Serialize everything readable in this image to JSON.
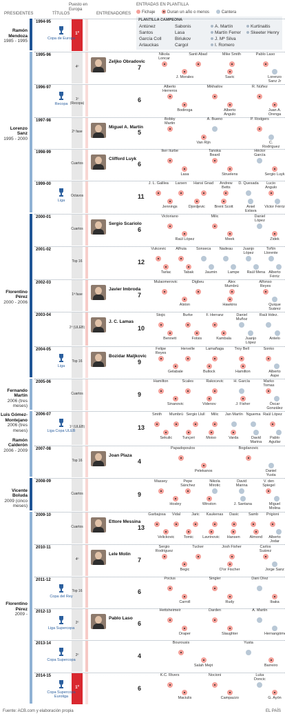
{
  "headers": {
    "presidents": "PRESIDENTES",
    "titles": "Títulos",
    "europe": "Puesto en Europa",
    "coaches": "ENTRENADORES",
    "entries": "ENTRADAS EN PLANTILLA"
  },
  "legend": {
    "signing": "Fichaje",
    "short": "Duran un año o menos",
    "youth": "Cantera"
  },
  "champ": {
    "title": "PLANTILLA CAMPEONA",
    "names": [
      "Antúnez",
      "Sabonis",
      "A. Martín",
      "Kurtinaitis",
      "Santos",
      "Lasa",
      "Martín Ferrer",
      "Skeeter Henry",
      "García Coll",
      "Biriukov",
      "J. Mª Silva",
      "",
      "Arlauckas",
      "Cargol",
      "I. Romero",
      ""
    ]
  },
  "presidents": [
    {
      "name": "Ramón Mendoza",
      "years": "1985 - 1995",
      "color": "#1f5596"
    },
    {
      "name": "Lorenzo Sanz",
      "years": "1995 - 2000",
      "color": "#8fb1d4"
    },
    {
      "name": "Florentino Pérez",
      "years": "2000 - 2006",
      "color": "#1f5596"
    },
    {
      "name": "Fernando Martín",
      "years": "2006 (tres meses)",
      "color": "#8fb1d4"
    },
    {
      "name": "Luis Gómez-Montejano",
      "years": "2006 (tres meses)",
      "color": "#1f5596"
    },
    {
      "name": "Ramón Calderón",
      "years": "2006 - 2009",
      "color": "#8fb1d4"
    },
    {
      "name": "Vicente Boluda",
      "years": "2009 (cinco meses)",
      "color": "#1f5596"
    },
    {
      "name": "Florentino Pérez",
      "years": "2009 -",
      "color": "#8fb1d4"
    }
  ],
  "seasons": [
    {
      "season": "1994-95",
      "title": "Copa de Europa",
      "europe": "1º",
      "win": true,
      "coach": "",
      "count": "",
      "players": []
    },
    {
      "season": "1995-96",
      "title": "",
      "europe": "4º",
      "win": false,
      "coach": "Zeljko Obradovic",
      "count": "7",
      "players": [
        [
          "Nikola Loncar",
          "f"
        ],
        [
          "Santi Abad",
          "f"
        ],
        [
          "Mike Smith",
          "f"
        ],
        [
          "Pablo Laso",
          "f"
        ],
        [
          "J. Morales",
          "f"
        ],
        [
          "Savic",
          "f"
        ],
        [
          "Lorenzo Sanz Jr",
          "c"
        ]
      ]
    },
    {
      "season": "1996-97",
      "title": "Recopa",
      "europe": "1º (Recopa)",
      "win": false,
      "coach": "",
      "count": "6",
      "players": [
        [
          "Alberto Herreros",
          "f"
        ],
        [
          "Mikhailov",
          "f"
        ],
        [
          "R. Núñez",
          "f"
        ],
        [
          "Bodiroga",
          "f"
        ],
        [
          "Alberto Angulo",
          "f"
        ],
        [
          "Juan A. Orenga",
          "f"
        ]
      ]
    },
    {
      "season": "1997-98",
      "title": "",
      "europe": "2º fase",
      "win": false,
      "coach": "Miguel A. Martín",
      "count": "5",
      "players": [
        [
          "Bobby Martin",
          "f"
        ],
        [
          "A. Bueno",
          "c"
        ],
        [
          "P. Rodgers",
          "f"
        ],
        [
          "Van Rijn",
          "f"
        ],
        [
          "C. Rodríguez",
          "c"
        ]
      ]
    },
    {
      "season": "1998-99",
      "title": "",
      "europe": "Cuartos",
      "win": false,
      "coach": "Clifford Luyk",
      "count": "6",
      "players": [
        [
          "Iker Iturbe",
          "f"
        ],
        [
          "Tanoka Beard",
          "f"
        ],
        [
          "Héctor García",
          "c"
        ],
        [
          "Lasa",
          "f"
        ],
        [
          "Struelens",
          "f"
        ],
        [
          "Sergio Luyk",
          "f"
        ]
      ]
    },
    {
      "season": "1999-00",
      "title": "Liga",
      "europe": "Octavos",
      "win": false,
      "coach": "",
      "count": "11",
      "players": [
        [
          "J. L. Galilea",
          "f"
        ],
        [
          "Larsen",
          "f"
        ],
        [
          "Hansi Gnad",
          "f"
        ],
        [
          "Andrew Betts",
          "f"
        ],
        [
          "D. Quesada",
          "c"
        ],
        [
          "Lucio Angulo",
          "f"
        ],
        [
          "Jennings",
          "f"
        ],
        [
          "Djordjevic",
          "f"
        ],
        [
          "Brent Scott",
          "f"
        ],
        [
          "Aniel Eslava",
          "c"
        ],
        [
          "Victor Férriz",
          "c"
        ]
      ]
    },
    {
      "season": "2000-01",
      "title": "",
      "europe": "Cuartos",
      "win": false,
      "coach": "Sergio Scariolo",
      "count": "6",
      "players": [
        [
          "Victoriano",
          "f"
        ],
        [
          "Milic",
          "f"
        ],
        [
          "Daniel López",
          "c"
        ],
        [
          "Raúl López",
          "f"
        ],
        [
          "Meek",
          "f"
        ],
        [
          "Zidek",
          "f"
        ]
      ]
    },
    {
      "season": "2001-02",
      "title": "",
      "europe": "Top 16",
      "win": false,
      "coach": "",
      "count": "12",
      "players": [
        [
          "Vukcevic",
          "f"
        ],
        [
          "Alfruia",
          "f"
        ],
        [
          "Sonseca",
          "c"
        ],
        [
          "Nadeau",
          "c"
        ],
        [
          "Juanjo López",
          "c"
        ],
        [
          "Toñín Llorente",
          "c"
        ],
        [
          "Tarlac",
          "f"
        ],
        [
          "Tabak",
          "f"
        ],
        [
          "Jaumin",
          "c"
        ],
        [
          "Lampe",
          "c"
        ],
        [
          "Raúl Mena",
          "c"
        ],
        [
          "Alberto Férriz",
          "c"
        ]
      ]
    },
    {
      "season": "2002-03",
      "title": "",
      "europe": "1ª fase",
      "win": false,
      "coach": "Javier Imbroda",
      "count": "7",
      "players": [
        [
          "Mulaomerovic",
          "f"
        ],
        [
          "Digbeu",
          "f"
        ],
        [
          "Álex Mumbrú",
          "f"
        ],
        [
          "Alfonso Reyes",
          "f"
        ],
        [
          "Alston",
          "f"
        ],
        [
          "Hawkins",
          "f"
        ],
        [
          "Quique Suárez",
          "c"
        ]
      ]
    },
    {
      "season": "2003-04",
      "title": "",
      "europe": "2º (ULEB)",
      "win": false,
      "coach": "J. C. Lamas",
      "count": "10",
      "players": [
        [
          "Stojic",
          "f"
        ],
        [
          "Burke",
          "f"
        ],
        [
          "F. Herranz",
          "f"
        ],
        [
          "Daniel Muñoz",
          "c"
        ],
        [
          "Raúl Hdez.",
          "c"
        ],
        [
          "Bennett",
          "f"
        ],
        [
          "Fotsis",
          "f"
        ],
        [
          "Kambala",
          "f"
        ],
        [
          "Juanjo López",
          "c"
        ],
        [
          "Antelo",
          "c"
        ]
      ]
    },
    {
      "season": "2004-05",
      "title": "Liga",
      "europe": "Top 16",
      "win": false,
      "coach": "Bozidar Maljkovic",
      "count": "9",
      "players": [
        [
          "Felipe Reyes",
          "f"
        ],
        [
          "Hervelle",
          "f"
        ],
        [
          "Lamañaga",
          "f"
        ],
        [
          "Troy Bell",
          "f"
        ],
        [
          "Sonko",
          "f"
        ],
        [
          "Gelabale",
          "f"
        ],
        [
          "Bullock",
          "f"
        ],
        [
          "Hamilton",
          "f"
        ],
        [
          "Alberto Aspe",
          "c"
        ]
      ]
    },
    {
      "season": "2005-06",
      "title": "",
      "europe": "Cuartos",
      "win": false,
      "coach": "",
      "count": "9",
      "players": [
        [
          "Hamilton",
          "f"
        ],
        [
          "Scales",
          "f"
        ],
        [
          "Rakocevic",
          "f"
        ],
        [
          "H. García",
          "c"
        ],
        [
          "Marko Tomas",
          "f"
        ],
        [
          "Sinanovic",
          "f"
        ],
        [
          "Videnov",
          "f"
        ],
        [
          "J. Fisher",
          "f"
        ],
        [
          "Óscar González",
          "c"
        ]
      ]
    },
    {
      "season": "2006-07",
      "title": "Liga Copa ULEB",
      "europe": "1º (ULEB)",
      "win": false,
      "coach": "",
      "count": "13",
      "players": [
        [
          "Smith",
          "f"
        ],
        [
          "Mumbrú",
          "f"
        ],
        [
          "Sergio Llull",
          "f"
        ],
        [
          "Milic",
          "f"
        ],
        [
          "Jan Martín",
          "c"
        ],
        [
          "Nguema",
          "c"
        ],
        [
          "Raúl López",
          "f"
        ],
        [
          "Sekulic",
          "f"
        ],
        [
          "Tunçeri",
          "f"
        ],
        [
          "Moiso",
          "f"
        ],
        [
          "Varda",
          "f"
        ],
        [
          "David Marina",
          "c"
        ],
        [
          "Pablo Aguilar",
          "c"
        ]
      ]
    },
    {
      "season": "2007-08",
      "title": "",
      "europe": "Top 16",
      "win": false,
      "coach": "Joan Plaza",
      "count": "4",
      "players": [
        [
          "Papadopoulos",
          "f"
        ],
        [
          "Bogdanovic",
          "f"
        ],
        [
          "Pelekanos",
          "f"
        ],
        [
          "Daniel Yusta",
          "c"
        ]
      ]
    },
    {
      "season": "2008-09",
      "title": "",
      "europe": "Cuartos",
      "win": false,
      "coach": "",
      "count": "9",
      "players": [
        [
          "Massey",
          "f"
        ],
        [
          "Pepe Sánchez",
          "f"
        ],
        [
          "Nikola Mirotic",
          "c"
        ],
        [
          "David Marina",
          "c"
        ],
        [
          "V. den Spiegel",
          "f"
        ],
        [
          "Hosley",
          "f"
        ],
        [
          "Winston",
          "f"
        ],
        [
          "J. Santana",
          "c"
        ],
        [
          "Miguel Molina",
          "c"
        ]
      ]
    },
    {
      "season": "2009-10",
      "title": "",
      "europe": "Cuartos",
      "win": false,
      "coach": "Ettore Messina",
      "count": "13",
      "players": [
        [
          "Garbajosa",
          "f"
        ],
        [
          "Vidal",
          "f"
        ],
        [
          "Jaric",
          "f"
        ],
        [
          "Kaukenas",
          "f"
        ],
        [
          "Dasic",
          "f"
        ],
        [
          "Samb",
          "f"
        ],
        [
          "Prigioni",
          "f"
        ],
        [
          "Velickovic",
          "f"
        ],
        [
          "Tomic",
          "f"
        ],
        [
          "Lavrinovic",
          "f"
        ],
        [
          "Hansen",
          "f"
        ],
        [
          "Almond",
          "f"
        ],
        [
          "Alberto Jodar",
          "c"
        ]
      ]
    },
    {
      "season": "2010-11",
      "title": "",
      "europe": "4º",
      "win": false,
      "coach": "Lele Molin",
      "count": "7",
      "players": [
        [
          "Sergio Rodríguez",
          "f"
        ],
        [
          "Tucker",
          "f"
        ],
        [
          "Josh Fisher",
          "f"
        ],
        [
          "Carlos Suárez",
          "f"
        ],
        [
          "Begic",
          "f"
        ],
        [
          "D'or Fischer",
          "f"
        ],
        [
          "Jorge Sanz",
          "c"
        ]
      ]
    },
    {
      "season": "2011-12",
      "title": "Copa del Rey",
      "europe": "Top 16",
      "win": false,
      "coach": "",
      "count": "6",
      "players": [
        [
          "Pocius",
          "f"
        ],
        [
          "Singler",
          "f"
        ],
        [
          "Dani Díez",
          "c"
        ],
        [
          "Carroll",
          "f"
        ],
        [
          "Rudy",
          "f"
        ],
        [
          "Ibaka",
          "f"
        ]
      ]
    },
    {
      "season": "2012-13",
      "title": "Liga Supercopa",
      "europe": "2º",
      "win": false,
      "coach": "Pablo Laso",
      "count": "6",
      "players": [
        [
          "Hettsheimeir",
          "f"
        ],
        [
          "Darden",
          "f"
        ],
        [
          "A. Martín",
          "c"
        ],
        [
          "Draper",
          "f"
        ],
        [
          "Slaughter",
          "f"
        ],
        [
          "Hernangómez",
          "c"
        ]
      ]
    },
    {
      "season": "2013-14",
      "title": "Copa Supercopa",
      "europe": "2º",
      "win": false,
      "coach": "",
      "count": "4",
      "players": [
        [
          "Bourousis",
          "f"
        ],
        [
          "Yusta",
          "c"
        ],
        [
          "Salah Mejri",
          "f"
        ],
        [
          "Barreiro",
          "f"
        ]
      ]
    },
    {
      "season": "2014-15",
      "title": "Copa Supercopa Euroliga",
      "europe": "1º",
      "win": true,
      "coach": "",
      "count": "6",
      "players": [
        [
          "K.C. Rivers",
          "f"
        ],
        [
          "Nocioni",
          "f"
        ],
        [
          "Luka Doncic",
          "c"
        ],
        [
          "Maciulis",
          "f"
        ],
        [
          "Campazzo",
          "f"
        ],
        [
          "G. Ayón",
          "f"
        ]
      ]
    }
  ],
  "footer": "Fuente: ACB.com y elaboración propia",
  "brand": "EL PAÍS"
}
